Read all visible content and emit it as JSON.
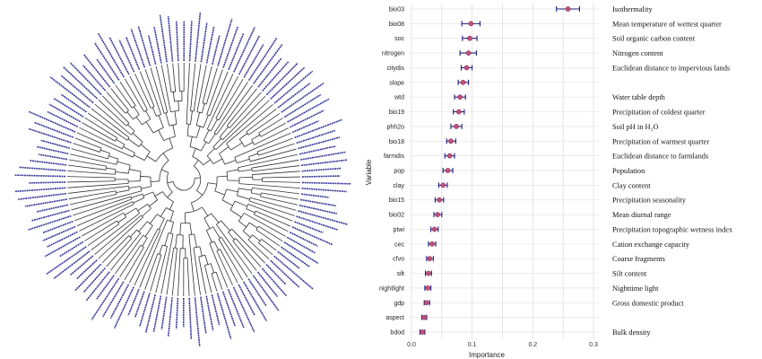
{
  "chart_data": {
    "type": "scatter",
    "xlabel": "Importance",
    "ylabel": "Variable",
    "xlim": [
      0.0,
      0.3
    ],
    "xticks": [
      "0.0",
      "0.1",
      "0.2",
      "0.3"
    ],
    "grid": true,
    "variables": [
      {
        "code": "bio03",
        "description": "Isothermality",
        "importance": 0.258,
        "lower": 0.239,
        "upper": 0.277
      },
      {
        "code": "bio08",
        "description": "Mean temperature of wettest quarter",
        "importance": 0.098,
        "lower": 0.083,
        "upper": 0.113
      },
      {
        "code": "soc",
        "description": "Soil organic carbon content",
        "importance": 0.096,
        "lower": 0.084,
        "upper": 0.108
      },
      {
        "code": "nitrogen",
        "description": "Nitrogen content",
        "importance": 0.094,
        "lower": 0.08,
        "upper": 0.107
      },
      {
        "code": "citydis",
        "description": "Euclidean distance to impervious lands",
        "importance": 0.091,
        "lower": 0.082,
        "upper": 0.1
      },
      {
        "code": "slope",
        "description": "",
        "importance": 0.085,
        "lower": 0.077,
        "upper": 0.094
      },
      {
        "code": "wtd",
        "description": "Water table depth",
        "importance": 0.08,
        "lower": 0.071,
        "upper": 0.089
      },
      {
        "code": "bio19",
        "description": "Precipitation  of coldest quarter",
        "importance": 0.078,
        "lower": 0.069,
        "upper": 0.087
      },
      {
        "code": "phh2o",
        "description": "Soil pH in H₂O",
        "importance": 0.074,
        "lower": 0.065,
        "upper": 0.083
      },
      {
        "code": "bio18",
        "description": "Precipitation  of warmest quarter",
        "importance": 0.065,
        "lower": 0.058,
        "upper": 0.073
      },
      {
        "code": "farmdis",
        "description": "Euclidean distance to farmlands",
        "importance": 0.063,
        "lower": 0.055,
        "upper": 0.071
      },
      {
        "code": "pop",
        "description": "Population",
        "importance": 0.06,
        "lower": 0.052,
        "upper": 0.068
      },
      {
        "code": "clay",
        "description": "Clay content",
        "importance": 0.052,
        "lower": 0.045,
        "upper": 0.059
      },
      {
        "code": "bio15",
        "description": "Precipitation  seasonality",
        "importance": 0.046,
        "lower": 0.039,
        "upper": 0.053
      },
      {
        "code": "bio02",
        "description": "Mean diurnal range",
        "importance": 0.043,
        "lower": 0.037,
        "upper": 0.05
      },
      {
        "code": "ptwi",
        "description": "Precipitation  topographic wetness index",
        "importance": 0.038,
        "lower": 0.032,
        "upper": 0.044
      },
      {
        "code": "cec",
        "description": "Cation exchange capacity",
        "importance": 0.034,
        "lower": 0.028,
        "upper": 0.04
      },
      {
        "code": "cfvo",
        "description": "Coarse fragments",
        "importance": 0.03,
        "lower": 0.025,
        "upper": 0.036
      },
      {
        "code": "silt",
        "description": "Silt content",
        "importance": 0.028,
        "lower": 0.023,
        "upper": 0.033
      },
      {
        "code": "nightlight",
        "description": "Nighttime light",
        "importance": 0.027,
        "lower": 0.022,
        "upper": 0.032
      },
      {
        "code": "gdp",
        "description": "Gross domestic product",
        "importance": 0.025,
        "lower": 0.021,
        "upper": 0.03
      },
      {
        "code": "aspect",
        "description": "",
        "importance": 0.021,
        "lower": 0.017,
        "upper": 0.025
      },
      {
        "code": "bdod",
        "description": "Bulk density",
        "importance": 0.018,
        "lower": 0.014,
        "upper": 0.022
      }
    ]
  },
  "colors": {
    "point": "#c0507a",
    "error_bar": "#1e1e7a",
    "tree_line": "#333333",
    "tree_label": "#3a3a9a",
    "grid": "#e3e3e3"
  }
}
